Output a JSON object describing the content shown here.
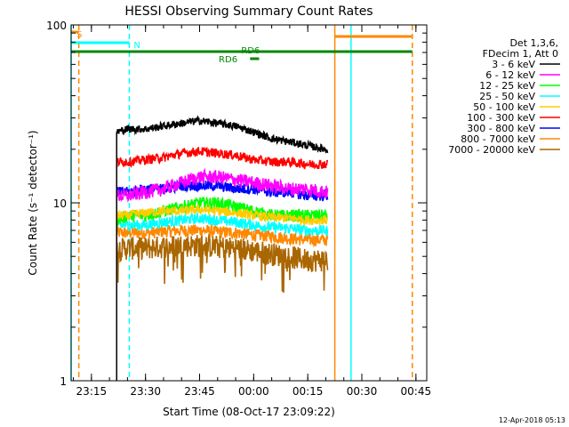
{
  "chart_data": {
    "type": "line",
    "title": "HESSI Observing Summary Count Rates",
    "xlabel": "Start Time (08-Oct-17 23:09:22)",
    "ylabel": "Count Rate (s⁻¹ detector⁻¹)",
    "x_scale": "time",
    "y_scale": "log",
    "xlim": [
      "2017-10-08T23:09:22",
      "2017-10-09T00:48:00"
    ],
    "ylim": [
      1,
      100
    ],
    "x_ticks": [
      "23:15",
      "23:30",
      "23:45",
      "00:00",
      "00:15",
      "00:30",
      "00:45"
    ],
    "x_tick_times": [
      "2017-10-08T23:15",
      "2017-10-08T23:30",
      "2017-10-08T23:45",
      "2017-10-09T00:00",
      "2017-10-09T00:15",
      "2017-10-09T00:30",
      "2017-10-09T00:45"
    ],
    "y_ticks": [
      "1",
      "10",
      "100"
    ],
    "y_tick_values": [
      1,
      10,
      100
    ],
    "grid": false,
    "legend_position": "right",
    "legend_header": [
      "Det 1,3,6,",
      "FDecim 1, Att 0"
    ],
    "data_start": "2017-10-08T23:22:00",
    "data_end": "2017-10-09T00:20:30",
    "series": [
      {
        "name": "3 - 6 keV",
        "color": "#000000",
        "x": [
          "23:22",
          "23:25",
          "23:30",
          "23:35",
          "23:40",
          "23:45",
          "23:50",
          "23:55",
          "00:00",
          "00:05",
          "00:10",
          "00:15",
          "00:20"
        ],
        "values": [
          25,
          26,
          26,
          27,
          28,
          29,
          28,
          27,
          25,
          23,
          22,
          21,
          20
        ]
      },
      {
        "name": "6 - 12 keV",
        "color": "#ff00ff",
        "x": [
          "23:22",
          "23:25",
          "23:30",
          "23:35",
          "23:40",
          "23:45",
          "23:50",
          "23:55",
          "00:00",
          "00:05",
          "00:10",
          "00:15",
          "00:20"
        ],
        "values": [
          11,
          11,
          11.5,
          12,
          13,
          14,
          14,
          13.5,
          13,
          12.5,
          12,
          12,
          11.5
        ]
      },
      {
        "name": "12 - 25 keV",
        "color": "#00ff00",
        "x": [
          "23:22",
          "23:25",
          "23:30",
          "23:35",
          "23:40",
          "23:45",
          "23:50",
          "23:55",
          "00:00",
          "00:05",
          "00:10",
          "00:15",
          "00:20"
        ],
        "values": [
          8,
          8.5,
          8.5,
          9,
          9.5,
          10,
          10,
          9.5,
          9,
          8.5,
          8.5,
          8.5,
          8.5
        ]
      },
      {
        "name": "25 - 50 keV",
        "color": "#00ffff",
        "x": [
          "23:22",
          "23:25",
          "23:30",
          "23:35",
          "23:40",
          "23:45",
          "23:50",
          "23:55",
          "00:00",
          "00:05",
          "00:10",
          "00:15",
          "00:20"
        ],
        "values": [
          7.5,
          7.5,
          7.5,
          7.8,
          8,
          8.2,
          8,
          7.8,
          7.5,
          7.3,
          7.2,
          7,
          7
        ]
      },
      {
        "name": "50 - 100 keV",
        "color": "#ffcc00",
        "x": [
          "23:22",
          "23:25",
          "23:30",
          "23:35",
          "23:40",
          "23:45",
          "23:50",
          "23:55",
          "00:00",
          "00:05",
          "00:10",
          "00:15",
          "00:20"
        ],
        "values": [
          8.5,
          8.5,
          8.8,
          9,
          9,
          9.2,
          9,
          8.8,
          8.5,
          8.3,
          8.2,
          8,
          8
        ]
      },
      {
        "name": "100 - 300 keV",
        "color": "#ff0000",
        "x": [
          "23:22",
          "23:25",
          "23:30",
          "23:35",
          "23:40",
          "23:45",
          "23:50",
          "23:55",
          "00:00",
          "00:05",
          "00:10",
          "00:15",
          "00:20"
        ],
        "values": [
          17,
          17,
          17.5,
          18,
          19,
          19.5,
          19,
          18.5,
          17.5,
          17,
          17,
          16.5,
          16.5
        ]
      },
      {
        "name": "300 - 800 keV",
        "color": "#0000ff",
        "x": [
          "23:22",
          "23:25",
          "23:30",
          "23:35",
          "23:40",
          "23:45",
          "23:50",
          "23:55",
          "00:00",
          "00:05",
          "00:10",
          "00:15",
          "00:20"
        ],
        "values": [
          11.5,
          11.5,
          12,
          12,
          12.5,
          12.5,
          12.5,
          12,
          12,
          11.5,
          11.5,
          11,
          11
        ]
      },
      {
        "name": "800 - 7000 keV",
        "color": "#ff8800",
        "x": [
          "23:22",
          "23:25",
          "23:30",
          "23:35",
          "23:40",
          "23:45",
          "23:50",
          "23:55",
          "00:00",
          "00:05",
          "00:10",
          "00:15",
          "00:20"
        ],
        "values": [
          6.8,
          6.8,
          6.8,
          6.9,
          7,
          7,
          6.9,
          6.8,
          6.6,
          6.5,
          6.3,
          6.2,
          6.2
        ]
      },
      {
        "name": "7000 - 20000 keV",
        "color": "#aa6600",
        "x": [
          "23:22",
          "23:25",
          "23:30",
          "23:35",
          "23:40",
          "23:45",
          "23:50",
          "23:55",
          "00:00",
          "00:05",
          "00:10",
          "00:15",
          "00:20"
        ],
        "values": [
          5.5,
          5.6,
          5.6,
          5.7,
          5.8,
          5.8,
          5.7,
          5.6,
          5.4,
          5.2,
          5,
          4.8,
          4.8
        ]
      }
    ],
    "attenuator_bars": [
      {
        "label": "S",
        "color": "#ff8800",
        "start": "2017-10-08T23:09:22",
        "end": "2017-10-08T23:11:30"
      },
      {
        "label": "N",
        "color": "#00ffff",
        "start": "2017-10-08T23:09:22",
        "end": "2017-10-08T23:25:30"
      },
      {
        "label": "",
        "color": "#00ffff",
        "start": "2017-10-09T00:27:00",
        "end": "2017-10-09T00:44:00"
      },
      {
        "label": "",
        "color": "#ff8800",
        "start": "2017-10-09T00:22:30",
        "end": "2017-10-09T00:44:00"
      },
      {
        "label": "",
        "color": "#008800",
        "start": "2017-10-08T23:09:22",
        "end": "2017-10-09T00:44:00"
      },
      {
        "label": "RD6",
        "color": "#008800",
        "start": "2017-10-08T23:59:00",
        "end": "2017-10-09T00:01:30"
      },
      {
        "label": "RD6",
        "color": "#008800",
        "start": "2017-10-08T23:55:00",
        "end": "2017-10-09T00:01:30"
      }
    ],
    "marker_lines": [
      {
        "time": "2017-10-08T23:09:22",
        "color": "#00ffff",
        "style": "solid"
      },
      {
        "time": "2017-10-08T23:11:30",
        "color": "#ff8800",
        "style": "dashed"
      },
      {
        "time": "2017-10-08T23:25:30",
        "color": "#00ffff",
        "style": "dashed"
      },
      {
        "time": "2017-10-09T00:22:30",
        "color": "#ff8800",
        "style": "solid"
      },
      {
        "time": "2017-10-09T00:27:00",
        "color": "#00ffff",
        "style": "solid"
      },
      {
        "time": "2017-10-09T00:44:00",
        "color": "#ff8800",
        "style": "dashed"
      }
    ],
    "timestamp": "12-Apr-2018 05:13"
  }
}
